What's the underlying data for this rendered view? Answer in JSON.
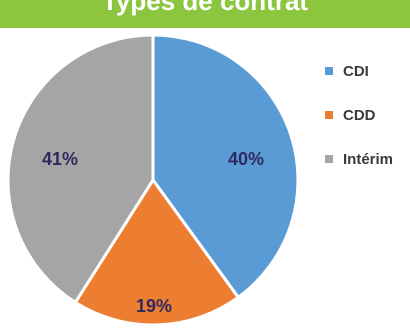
{
  "header": {
    "title": "Types de contrat"
  },
  "chart_data": {
    "type": "pie",
    "title": "",
    "categories": [
      "CDI",
      "CDD",
      "Intérim"
    ],
    "values": [
      40,
      19,
      41
    ],
    "labels": [
      "40%",
      "19%",
      "41%"
    ],
    "colors": [
      "#5b9bd5",
      "#ed7d31",
      "#a5a5a5"
    ],
    "label_color": "#2e2a60",
    "legend_position": "right"
  }
}
